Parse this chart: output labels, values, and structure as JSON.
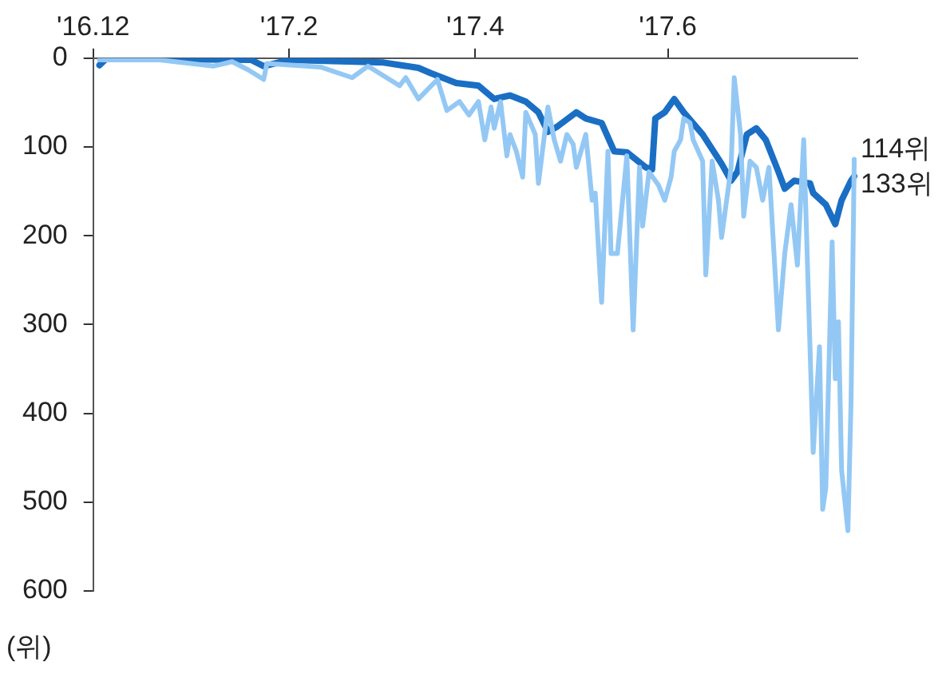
{
  "chart_data": {
    "type": "line",
    "ylabel": "(위)",
    "xlim": [
      "2016-12-01",
      "2017-07-31"
    ],
    "xticks": [
      {
        "value": "2016-12-01",
        "label": "'16.12"
      },
      {
        "value": "2017-02-01",
        "label": "'17.2"
      },
      {
        "value": "2017-04-01",
        "label": "'17.4"
      },
      {
        "value": "2017-06-01",
        "label": "'17.6"
      }
    ],
    "ylim": [
      600,
      0
    ],
    "yticks": [
      0,
      100,
      200,
      300,
      400,
      500,
      600
    ],
    "grid": false,
    "legend": false,
    "marker": "none",
    "line_style": "solid",
    "annotations": [
      {
        "text": "114위",
        "x": "2017-07-30",
        "y": 114
      },
      {
        "text": "133위",
        "x": "2017-07-30",
        "y": 133
      }
    ],
    "series": [
      {
        "color": "#94c8f4",
        "x": [
          "2016-12-03",
          "2016-12-22",
          "2017-01-08",
          "2017-01-14",
          "2017-01-19",
          "2017-01-24",
          "2017-01-25",
          "2017-02-11",
          "2017-02-21",
          "2017-02-26",
          "2017-03-08",
          "2017-03-10",
          "2017-03-14",
          "2017-03-20",
          "2017-03-23",
          "2017-03-27",
          "2017-03-30",
          "2017-04-02",
          "2017-04-04",
          "2017-04-06",
          "2017-04-07",
          "2017-04-09",
          "2017-04-11",
          "2017-04-12",
          "2017-04-14",
          "2017-04-16",
          "2017-04-17",
          "2017-04-20",
          "2017-04-21",
          "2017-04-24",
          "2017-04-26",
          "2017-04-28",
          "2017-04-30",
          "2017-05-02",
          "2017-05-03",
          "2017-05-06",
          "2017-05-08",
          "2017-05-09",
          "2017-05-11",
          "2017-05-13",
          "2017-05-14",
          "2017-05-16",
          "2017-05-19",
          "2017-05-21",
          "2017-05-23",
          "2017-05-24",
          "2017-05-26",
          "2017-05-29",
          "2017-05-31",
          "2017-06-02",
          "2017-06-03",
          "2017-06-05",
          "2017-06-06",
          "2017-06-08",
          "2017-06-09",
          "2017-06-12",
          "2017-06-13",
          "2017-06-15",
          "2017-06-17",
          "2017-06-18",
          "2017-06-21",
          "2017-06-22",
          "2017-06-24",
          "2017-06-25",
          "2017-06-27",
          "2017-06-29",
          "2017-07-01",
          "2017-07-03",
          "2017-07-06",
          "2017-07-08",
          "2017-07-10",
          "2017-07-12",
          "2017-07-14",
          "2017-07-17",
          "2017-07-19",
          "2017-07-20",
          "2017-07-21",
          "2017-07-23",
          "2017-07-24",
          "2017-07-25",
          "2017-07-26",
          "2017-07-28",
          "2017-07-29",
          "2017-07-30"
        ],
        "values": [
          2,
          2,
          9,
          4,
          13,
          24,
          6,
          10,
          22,
          9,
          31,
          22,
          46,
          24,
          59,
          49,
          64,
          49,
          92,
          55,
          79,
          49,
          110,
          86,
          105,
          134,
          61,
          86,
          141,
          55,
          92,
          116,
          86,
          97,
          123,
          86,
          160,
          152,
          275,
          105,
          220,
          220,
          110,
          306,
          123,
          189,
          128,
          143,
          160,
          134,
          105,
          92,
          68,
          73,
          92,
          116,
          244,
          116,
          160,
          202,
          123,
          22,
          86,
          178,
          116,
          123,
          160,
          123,
          306,
          220,
          165,
          233,
          92,
          444,
          325,
          508,
          484,
          207,
          361,
          297,
          464,
          532,
          385,
          114
        ]
      },
      {
        "color": "#1a6fc4",
        "x": [
          "2016-12-03",
          "2016-12-05",
          "2016-12-22",
          "2017-01-20",
          "2017-01-24",
          "2017-02-01",
          "2017-03-03",
          "2017-03-14",
          "2017-03-18",
          "2017-03-26",
          "2017-04-02",
          "2017-04-07",
          "2017-04-12",
          "2017-04-17",
          "2017-04-21",
          "2017-04-24",
          "2017-04-27",
          "2017-05-03",
          "2017-05-06",
          "2017-05-11",
          "2017-05-15",
          "2017-05-19",
          "2017-05-25",
          "2017-05-27",
          "2017-05-28",
          "2017-05-31",
          "2017-06-03",
          "2017-06-06",
          "2017-06-12",
          "2017-06-18",
          "2017-06-21",
          "2017-06-23",
          "2017-06-26",
          "2017-06-29",
          "2017-07-02",
          "2017-07-06",
          "2017-07-08",
          "2017-07-11",
          "2017-07-16",
          "2017-07-17",
          "2017-07-21",
          "2017-07-24",
          "2017-07-26",
          "2017-07-29",
          "2017-07-30"
        ],
        "values": [
          8,
          1,
          1,
          2,
          9,
          2,
          5,
          11,
          17,
          28,
          31,
          46,
          42,
          49,
          61,
          83,
          77,
          61,
          68,
          73,
          105,
          106,
          123,
          125,
          68,
          61,
          46,
          61,
          86,
          119,
          138,
          128,
          86,
          79,
          92,
          128,
          147,
          138,
          141,
          152,
          165,
          187,
          160,
          138,
          133
        ]
      }
    ]
  }
}
